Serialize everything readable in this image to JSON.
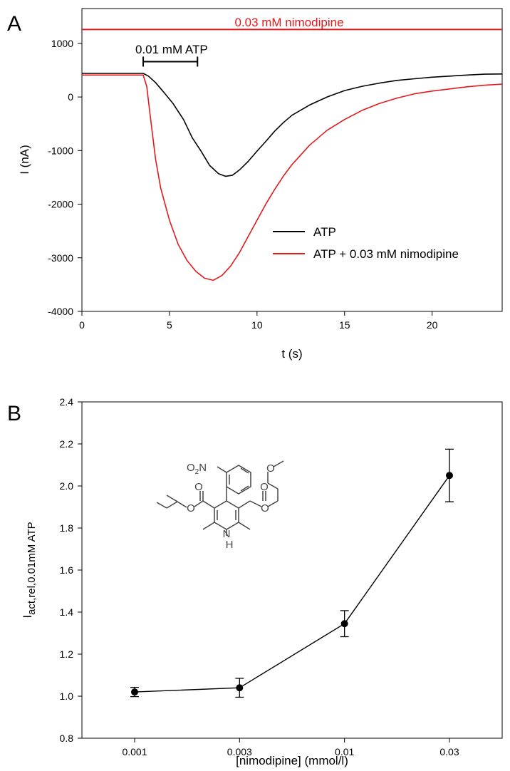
{
  "colors": {
    "atp": "#000000",
    "nimodipine": "#e31a1c",
    "structure": "#444444"
  },
  "chart_data": [
    {
      "panel": "A",
      "type": "line",
      "xlabel": "t (s)",
      "ylabel": "I (nA)",
      "xlim": [
        0,
        24
      ],
      "ylim": [
        -4000,
        1650
      ],
      "xticks": [
        0,
        5,
        10,
        15,
        20
      ],
      "yticks": [
        -4000,
        -3000,
        -2000,
        -1000,
        0,
        1000
      ],
      "annotations": [
        {
          "label": "0.01 mM ATP",
          "x_start": 3.5,
          "x_end": 6.6,
          "y": 660,
          "color": "#000000"
        },
        {
          "label": "0.03 mM nimodipine",
          "x_start": 0,
          "x_end": 24,
          "y": 1260,
          "color": "#e31a1c"
        }
      ],
      "legend_position": "bottom-right",
      "series": [
        {
          "name": "ATP",
          "color": "#000000",
          "x": [
            0,
            3.0,
            3.5,
            3.8,
            4.2,
            4.7,
            5.2,
            5.8,
            6.3,
            6.8,
            7.3,
            7.8,
            8.2,
            8.6,
            9.0,
            9.5,
            10.0,
            10.5,
            11.0,
            11.5,
            12.0,
            13.0,
            14.0,
            15.0,
            16.0,
            17.0,
            18.0,
            19.0,
            20.0,
            21.0,
            22.0,
            23.0,
            24.0
          ],
          "y": [
            440,
            440,
            440,
            390,
            270,
            80,
            -120,
            -420,
            -760,
            -1010,
            -1280,
            -1430,
            -1480,
            -1460,
            -1360,
            -1200,
            -1010,
            -830,
            -640,
            -480,
            -340,
            -150,
            0,
            120,
            200,
            260,
            310,
            340,
            370,
            390,
            410,
            425,
            430
          ]
        },
        {
          "name": "ATP + 0.03 mM nimodipine",
          "color": "#e31a1c",
          "x": [
            0,
            3.0,
            3.5,
            3.7,
            3.9,
            4.2,
            4.5,
            5.0,
            5.5,
            6.0,
            6.5,
            7.0,
            7.5,
            8.0,
            8.5,
            9.0,
            9.5,
            10.0,
            10.5,
            11.0,
            11.5,
            12.0,
            13.0,
            14.0,
            15.0,
            16.0,
            17.0,
            18.0,
            19.0,
            20.0,
            21.0,
            22.0,
            23.0,
            24.0
          ],
          "y": [
            410,
            410,
            410,
            200,
            -350,
            -1150,
            -1700,
            -2300,
            -2750,
            -3050,
            -3250,
            -3380,
            -3420,
            -3330,
            -3150,
            -2900,
            -2600,
            -2300,
            -2000,
            -1730,
            -1480,
            -1260,
            -900,
            -620,
            -420,
            -250,
            -120,
            -20,
            60,
            110,
            150,
            190,
            220,
            240
          ]
        }
      ]
    },
    {
      "panel": "B",
      "type": "line",
      "xlabel": "[nimodipine] (mmol/l)",
      "ylabel_main": "I",
      "ylabel_sub": "act,rel,0.01mM ATP",
      "ylim": [
        0.8,
        2.4
      ],
      "yticks": [
        "0.8",
        "1.0",
        "1.2",
        "1.4",
        "1.6",
        "1.8",
        "2.0",
        "2.2",
        "2.4"
      ],
      "categories": [
        "0.001",
        "0.003",
        "0.01",
        "0.03"
      ],
      "values": [
        1.02,
        1.04,
        1.345,
        2.05
      ],
      "errors": [
        0.022,
        0.045,
        0.062,
        0.125
      ],
      "color": "#000000"
    }
  ],
  "panels": {
    "a": "A",
    "b": "B"
  },
  "structure_labels": {
    "nitro_o": "O",
    "nitro_sub": "2",
    "nitro_n": "N",
    "nh_n": "N",
    "nh_h": "H",
    "ester_o": "O"
  }
}
